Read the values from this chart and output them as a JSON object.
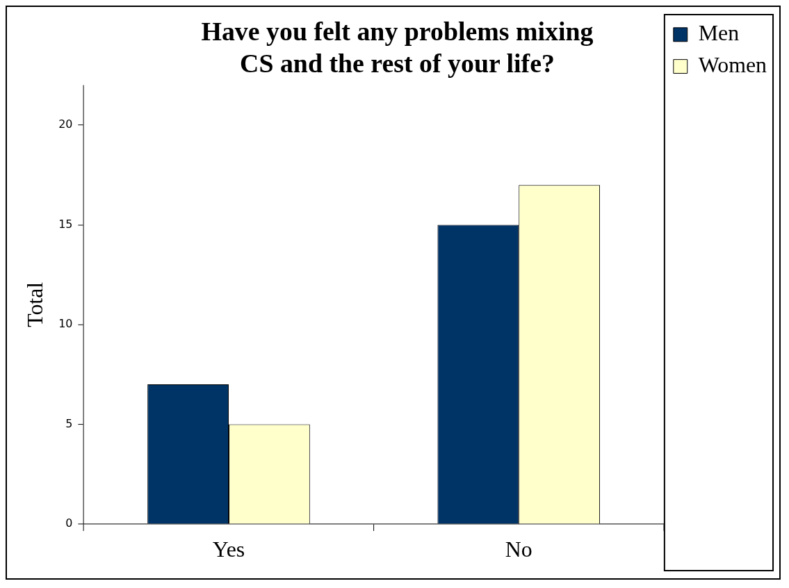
{
  "chart_data": {
    "type": "bar",
    "title": "Have you felt any problems mixing CS and the rest of your life?",
    "ylabel": "Total",
    "categories": [
      "Yes",
      "No"
    ],
    "series": [
      {
        "name": "Men",
        "color": "#003366",
        "values": [
          7,
          15
        ]
      },
      {
        "name": "Women",
        "color": "#ffffcc",
        "values": [
          5,
          17
        ]
      }
    ],
    "ylim": [
      0,
      22
    ],
    "yticks": [
      0,
      5,
      10,
      15,
      20
    ],
    "grid": false,
    "legend": "top right"
  }
}
